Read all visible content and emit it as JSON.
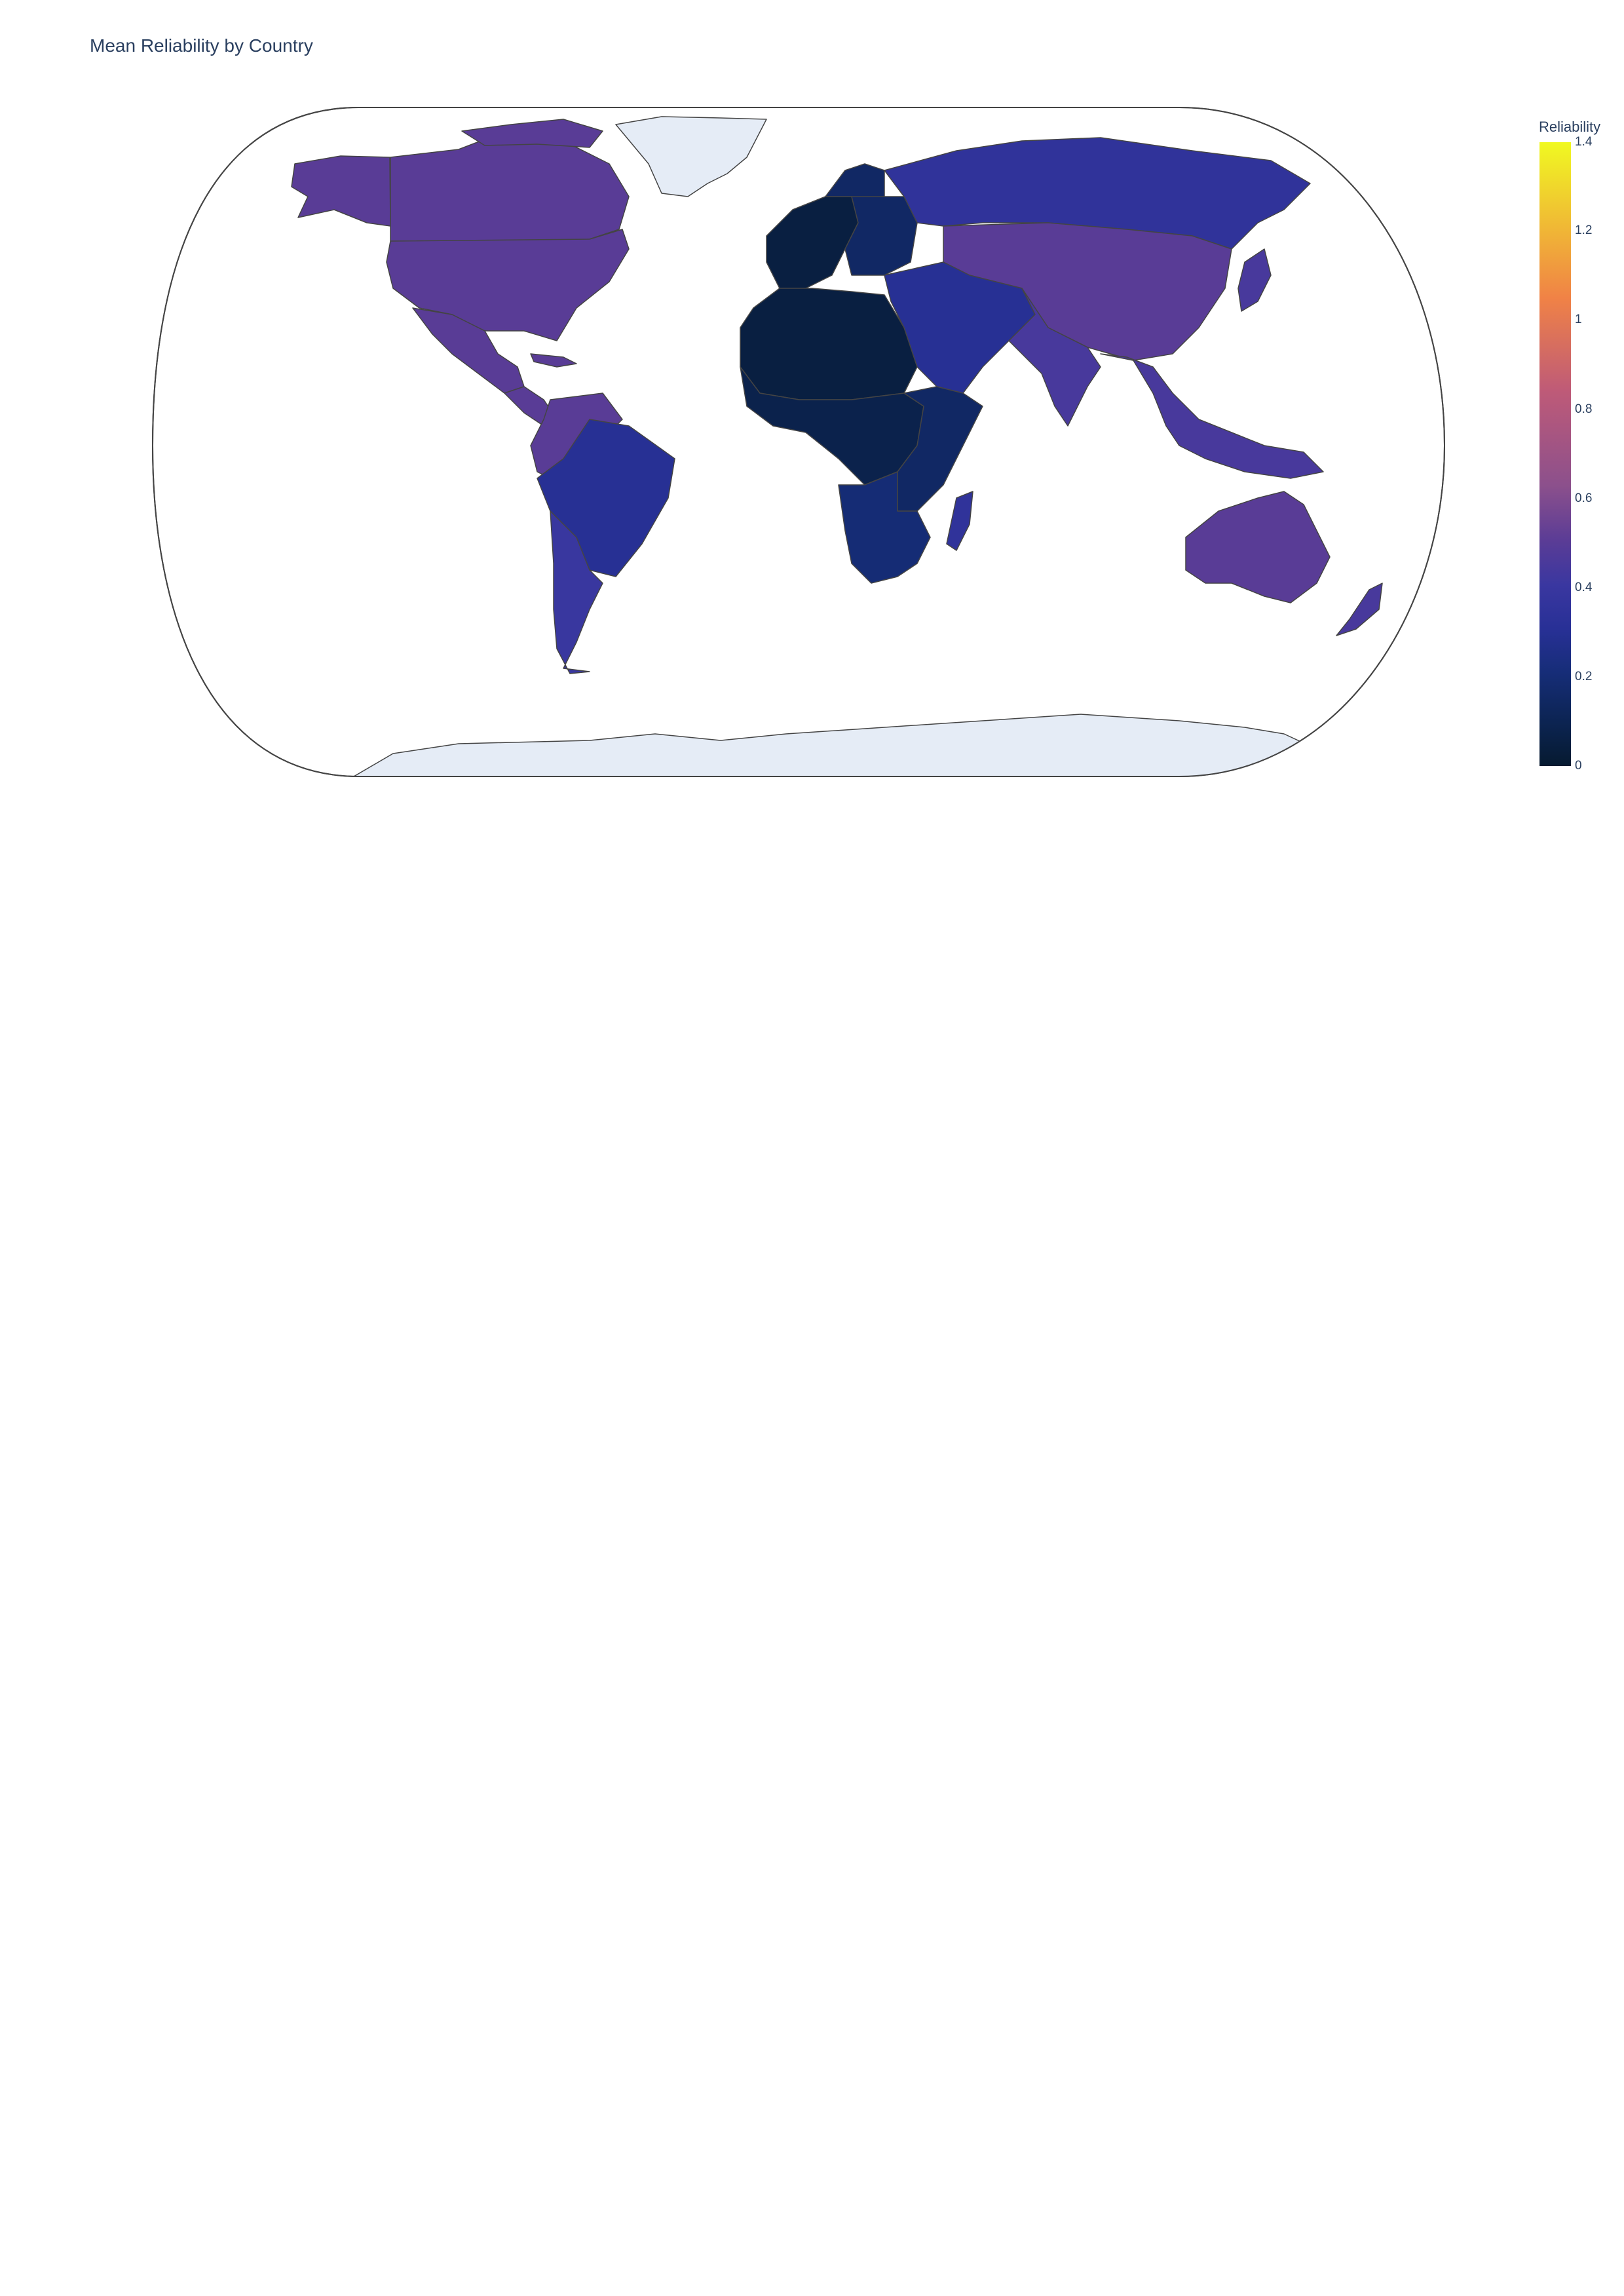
{
  "chart_data": {
    "type": "choropleth",
    "title": "Mean Reliability by Country",
    "projection": "natural earth",
    "colorbar": {
      "title": "Reliability",
      "colorscale": "plasma",
      "range": [
        0,
        1.4
      ],
      "ticks": [
        "1.4",
        "1.2",
        "1",
        "0.8",
        "0.6",
        "0.4",
        "0.2",
        "0"
      ]
    },
    "colors": {
      "ocean": "#ffffff",
      "land_no_data": "#e5ecf6",
      "border": "#444444",
      "low": "#0d0887",
      "mid": "#9c179e",
      "high": "#f0f921"
    },
    "values": [
      {
        "region": "North America",
        "reliability": 0.5
      },
      {
        "region": "Mexico & Central America",
        "reliability": 0.5
      },
      {
        "region": "South America (north)",
        "reliability": 0.5
      },
      {
        "region": "Brazil",
        "reliability": 0.3
      },
      {
        "region": "South America (south)",
        "reliability": 0.4
      },
      {
        "region": "Greenland",
        "reliability": null
      },
      {
        "region": "Western Europe",
        "reliability": 0.05
      },
      {
        "region": "Eastern Europe",
        "reliability": 0.15
      },
      {
        "region": "Russia",
        "reliability": 0.35
      },
      {
        "region": "Central Asia & China",
        "reliability": 0.5
      },
      {
        "region": "Middle East",
        "reliability": 0.3
      },
      {
        "region": "India",
        "reliability": 0.45
      },
      {
        "region": "Southeast Asia",
        "reliability": 0.45
      },
      {
        "region": "Japan",
        "reliability": 0.45
      },
      {
        "region": "North Africa",
        "reliability": 0.05
      },
      {
        "region": "West & Central Africa",
        "reliability": 0.08
      },
      {
        "region": "East Africa",
        "reliability": 0.15
      },
      {
        "region": "Southern Africa",
        "reliability": 0.2
      },
      {
        "region": "Madagascar",
        "reliability": 0.35
      },
      {
        "region": "Australia",
        "reliability": 0.5
      },
      {
        "region": "New Zealand",
        "reliability": 0.45
      },
      {
        "region": "Antarctica",
        "reliability": null
      }
    ]
  }
}
